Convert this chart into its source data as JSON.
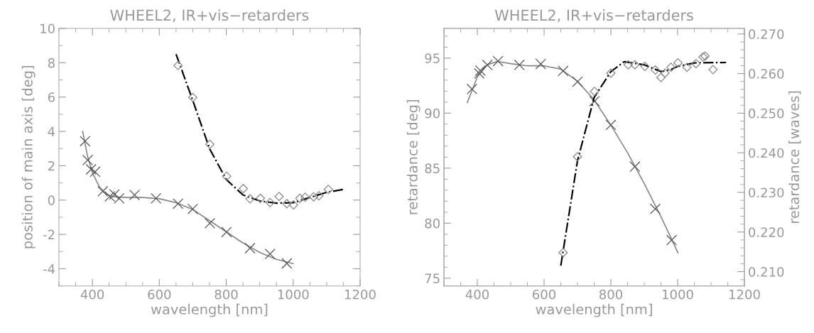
{
  "chart_data": [
    {
      "type": "scatter",
      "title": "WHEEL2, IR+vis−retarders",
      "xlabel": "wavelength [nm]",
      "ylabel": "position of main axis [deg]",
      "xlim": [
        300,
        1200
      ],
      "xticks": [
        400,
        600,
        800,
        1000,
        1200
      ],
      "ylim": [
        -5,
        10
      ],
      "yticks": [
        -4,
        -2,
        0,
        2,
        4,
        6,
        8,
        10
      ],
      "grid": false,
      "series": [
        {
          "type": "line",
          "color": "#888888",
          "line_style": "solid",
          "marker": "none",
          "x": [
            371,
            385,
            400,
            420,
            440,
            460,
            500,
            550,
            600,
            650,
            700,
            750,
            800,
            850,
            900,
            950,
            1000
          ],
          "values": [
            4.0,
            2.6,
            1.6,
            0.8,
            0.35,
            0.2,
            0.15,
            0.15,
            0.08,
            -0.15,
            -0.55,
            -1.2,
            -1.85,
            -2.5,
            -3.05,
            -3.45,
            -3.7
          ]
        },
        {
          "color": "#555555",
          "marker": "cross",
          "x": [
            378,
            386,
            396,
            408,
            431,
            452,
            466,
            480,
            526,
            590,
            656,
            700,
            751,
            801,
            871,
            931,
            981
          ],
          "values": [
            3.43,
            2.33,
            1.79,
            1.65,
            0.51,
            0.21,
            0.33,
            0.1,
            0.3,
            0.1,
            -0.21,
            -0.52,
            -1.35,
            -1.86,
            -2.8,
            -3.14,
            -3.69
          ]
        },
        {
          "type": "line",
          "color": "#000000",
          "line_style": "dashdot",
          "marker": "none",
          "x": [
            650,
            700,
            750,
            800,
            850,
            900,
            950,
            1000,
            1050,
            1100,
            1150
          ],
          "values": [
            8.5,
            5.8,
            3.0,
            1.2,
            0.3,
            -0.05,
            -0.18,
            -0.15,
            0.15,
            0.45,
            0.62
          ]
        },
        {
          "color": "#888888",
          "marker": "diamond",
          "x": [
            656,
            700,
            751,
            801,
            851,
            871,
            902,
            931,
            958,
            981,
            1001,
            1020,
            1036,
            1061,
            1077,
            1105
          ],
          "values": [
            7.84,
            5.98,
            3.25,
            1.39,
            0.67,
            0.07,
            0.1,
            -0.14,
            0.21,
            -0.21,
            -0.28,
            0.1,
            0.17,
            0.19,
            0.25,
            0.62
          ]
        }
      ]
    },
    {
      "type": "scatter",
      "title": "WHEEL2, IR+vis−retarders",
      "xlabel": "wavelength [nm]",
      "ylabel": "retardance [deg]",
      "y2label": "retardance [waves]",
      "xlim": [
        300,
        1200
      ],
      "xticks": [
        400,
        600,
        800,
        1000,
        1200
      ],
      "ylim": [
        74.3,
        97.7
      ],
      "yticks": [
        75,
        80,
        85,
        90,
        95
      ],
      "y2lim": [
        0.2064,
        0.2714
      ],
      "y2ticks": [
        {
          "value": 0.21,
          "label": "0.210"
        },
        {
          "value": 0.22,
          "label": "0.220"
        },
        {
          "value": 0.23,
          "label": "0.230"
        },
        {
          "value": 0.24,
          "label": "0.240"
        },
        {
          "value": 0.25,
          "label": "0.250"
        },
        {
          "value": 0.26,
          "label": "0.260"
        },
        {
          "value": 0.27,
          "label": "0.270"
        }
      ],
      "grid": false,
      "series": [
        {
          "type": "line",
          "color": "#888888",
          "line_style": "solid",
          "marker": "none",
          "x": [
            370,
            400,
            430,
            460,
            500,
            550,
            600,
            650,
            700,
            750,
            800,
            850,
            900,
            950,
            1001
          ],
          "values": [
            90.97,
            93.3,
            94.4,
            94.7,
            94.5,
            94.3,
            94.3,
            94.0,
            92.9,
            91.2,
            88.9,
            86.4,
            83.6,
            80.6,
            77.3
          ]
        },
        {
          "color": "#555555",
          "marker": "cross",
          "x": [
            384,
            406,
            409,
            430,
            462,
            526,
            590,
            657,
            700,
            751,
            800,
            872,
            933,
            982
          ],
          "values": [
            92.19,
            93.61,
            93.87,
            94.38,
            94.73,
            94.38,
            94.47,
            93.83,
            92.86,
            91.08,
            88.93,
            85.14,
            81.3,
            78.46
          ]
        },
        {
          "type": "line",
          "axis": "y2",
          "color": "#000000",
          "line_style": "dashdot",
          "marker": "none",
          "x": [
            650,
            700,
            750,
            800,
            840,
            900,
            950,
            980,
            1000,
            1050,
            1145
          ],
          "values": [
            0.2115,
            0.238,
            0.254,
            0.2605,
            0.263,
            0.2622,
            0.2605,
            0.261,
            0.2618,
            0.2627,
            0.2628
          ]
        },
        {
          "axis": "y2",
          "color": "#888888",
          "marker": "diamond",
          "x": [
            657,
            700,
            751,
            800,
            852,
            872,
            902,
            933,
            950,
            962,
            980,
            1001,
            1028,
            1055,
            1076,
            1082,
            1106
          ],
          "values": [
            0.2148,
            0.239,
            0.2555,
            0.2601,
            0.2622,
            0.2622,
            0.2618,
            0.2609,
            0.259,
            0.2601,
            0.2616,
            0.2627,
            0.2616,
            0.2625,
            0.2642,
            0.2644,
            0.261
          ]
        }
      ]
    }
  ]
}
